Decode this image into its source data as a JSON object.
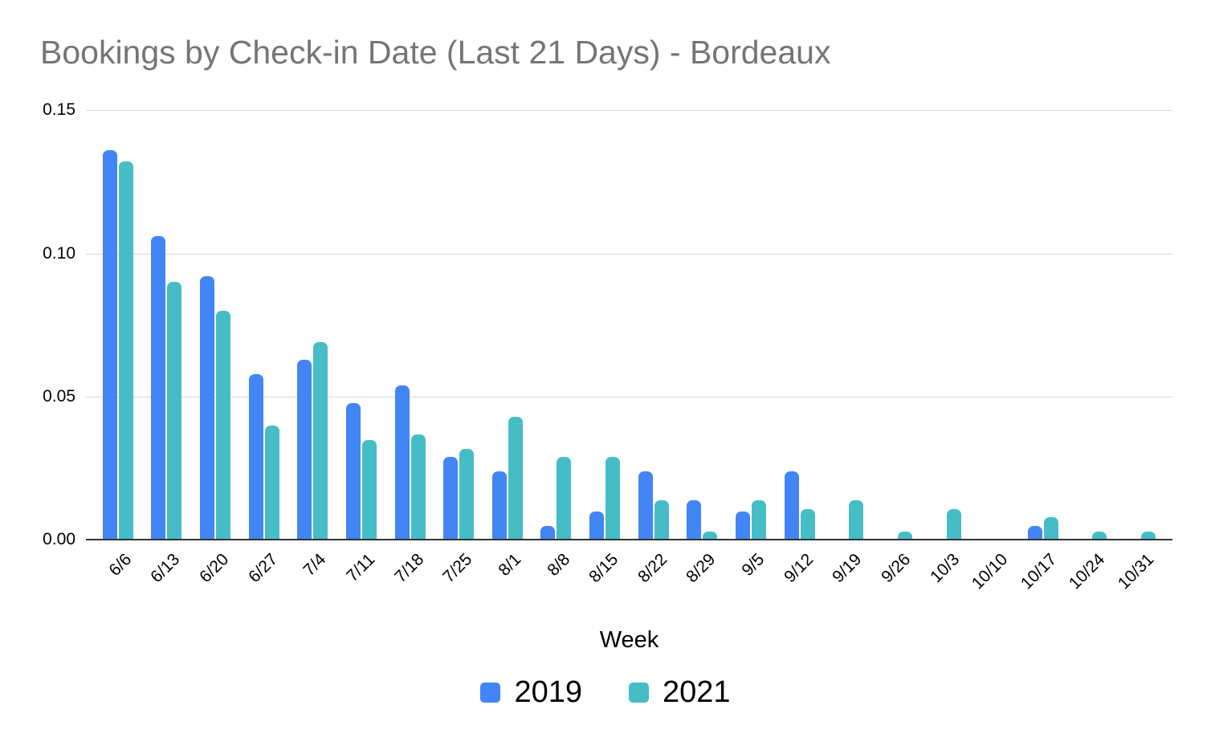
{
  "chart_data": {
    "type": "bar",
    "title": "Bookings by Check-in Date (Last 21 Days) - Bordeaux",
    "xlabel": "Week",
    "ylabel": "",
    "ylim": [
      0,
      0.15
    ],
    "y_tick_labels": [
      "0.15",
      "0.10",
      "0.05",
      "0.00"
    ],
    "y_tick_values": [
      0.15,
      0.1,
      0.05,
      0.0
    ],
    "grid": true,
    "legend_position": "bottom",
    "bar_style": "rounded-top",
    "categories": [
      "6/6",
      "6/13",
      "6/20",
      "6/27",
      "7/4",
      "7/11",
      "7/18",
      "7/25",
      "8/1",
      "8/8",
      "8/15",
      "8/22",
      "8/29",
      "9/5",
      "9/12",
      "9/19",
      "9/26",
      "10/3",
      "10/10",
      "10/17",
      "10/24",
      "10/31"
    ],
    "series": [
      {
        "name": "2019",
        "color": "#4285F4",
        "values": [
          0.136,
          0.106,
          0.092,
          0.058,
          0.063,
          0.048,
          0.054,
          0.029,
          0.024,
          0.005,
          0.01,
          0.024,
          0.014,
          0.01,
          0.024,
          0,
          0,
          0,
          0,
          0.005,
          0,
          0
        ]
      },
      {
        "name": "2021",
        "color": "#46BDC6",
        "values": [
          0.132,
          0.09,
          0.08,
          0.04,
          0.069,
          0.035,
          0.037,
          0.032,
          0.043,
          0.029,
          0.029,
          0.014,
          0.003,
          0.014,
          0.011,
          0.014,
          0.003,
          0.011,
          0.0005,
          0.008,
          0.003,
          0.003
        ]
      }
    ]
  },
  "styles": {
    "title_color": "#757575",
    "gridline_color": "#d9d9d9",
    "axis_line_color": "#333333",
    "text_color": "#000000",
    "background": "#ffffff"
  }
}
